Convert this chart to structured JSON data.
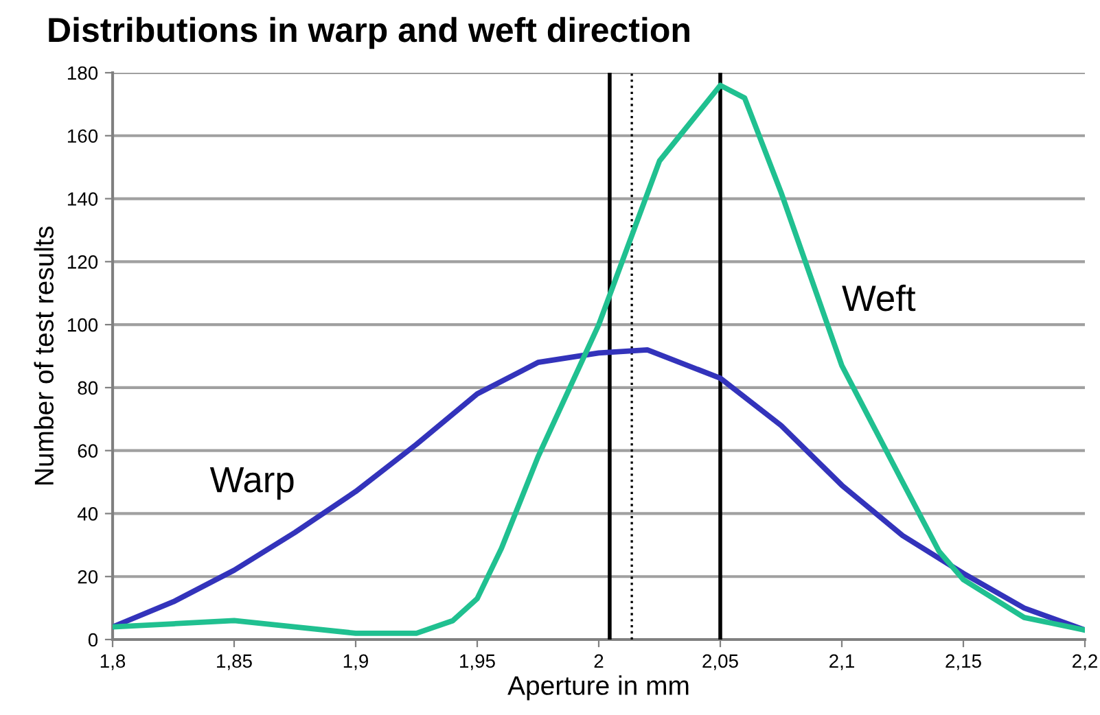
{
  "chart_data": {
    "type": "line",
    "title": "Distributions in warp and weft direction",
    "xlabel": "Aperture in mm",
    "ylabel": "Number of test results",
    "xlim": [
      1.8,
      2.2
    ],
    "ylim": [
      0,
      180
    ],
    "xticks": [
      {
        "value": 1.8,
        "label": "1,8"
      },
      {
        "value": 1.85,
        "label": "1,85"
      },
      {
        "value": 1.9,
        "label": "1,9"
      },
      {
        "value": 1.95,
        "label": "1,95"
      },
      {
        "value": 2.0,
        "label": "2"
      },
      {
        "value": 2.05,
        "label": "2,05"
      },
      {
        "value": 2.1,
        "label": "2,1"
      },
      {
        "value": 2.15,
        "label": "2,15"
      },
      {
        "value": 2.2,
        "label": "2,2"
      }
    ],
    "yticks": [
      0,
      20,
      40,
      60,
      80,
      100,
      120,
      140,
      160,
      180
    ],
    "grid": "y",
    "marker": "none",
    "line_style": "solid",
    "series": [
      {
        "name": "Warp",
        "color": "#3333bb",
        "x": [
          1.8,
          1.825,
          1.85,
          1.875,
          1.9,
          1.925,
          1.95,
          1.975,
          2.0,
          2.02,
          2.05,
          2.075,
          2.1,
          2.125,
          2.15,
          2.175,
          2.2
        ],
        "values": [
          4,
          12,
          22,
          34,
          47,
          62,
          78,
          88,
          91,
          92,
          83,
          68,
          49,
          33,
          21,
          10,
          3
        ]
      },
      {
        "name": "Weft",
        "color": "#20c090",
        "x": [
          1.8,
          1.825,
          1.85,
          1.875,
          1.9,
          1.925,
          1.94,
          1.95,
          1.96,
          1.975,
          2.0,
          2.025,
          2.05,
          2.06,
          2.075,
          2.1,
          2.125,
          2.14,
          2.15,
          2.175,
          2.2
        ],
        "values": [
          4,
          5,
          6,
          4,
          2,
          2,
          6,
          13,
          29,
          58,
          100,
          152,
          176,
          172,
          142,
          87,
          50,
          28,
          19,
          7,
          3
        ]
      }
    ],
    "ref_lines": [
      {
        "axis": "x",
        "value": 2.0045,
        "color": "#000000",
        "line_style": "solid"
      },
      {
        "axis": "x",
        "value": 2.0136,
        "color": "#000000",
        "line_style": "dotted"
      },
      {
        "axis": "x",
        "value": 2.05,
        "color": "#000000",
        "line_style": "solid"
      }
    ]
  }
}
